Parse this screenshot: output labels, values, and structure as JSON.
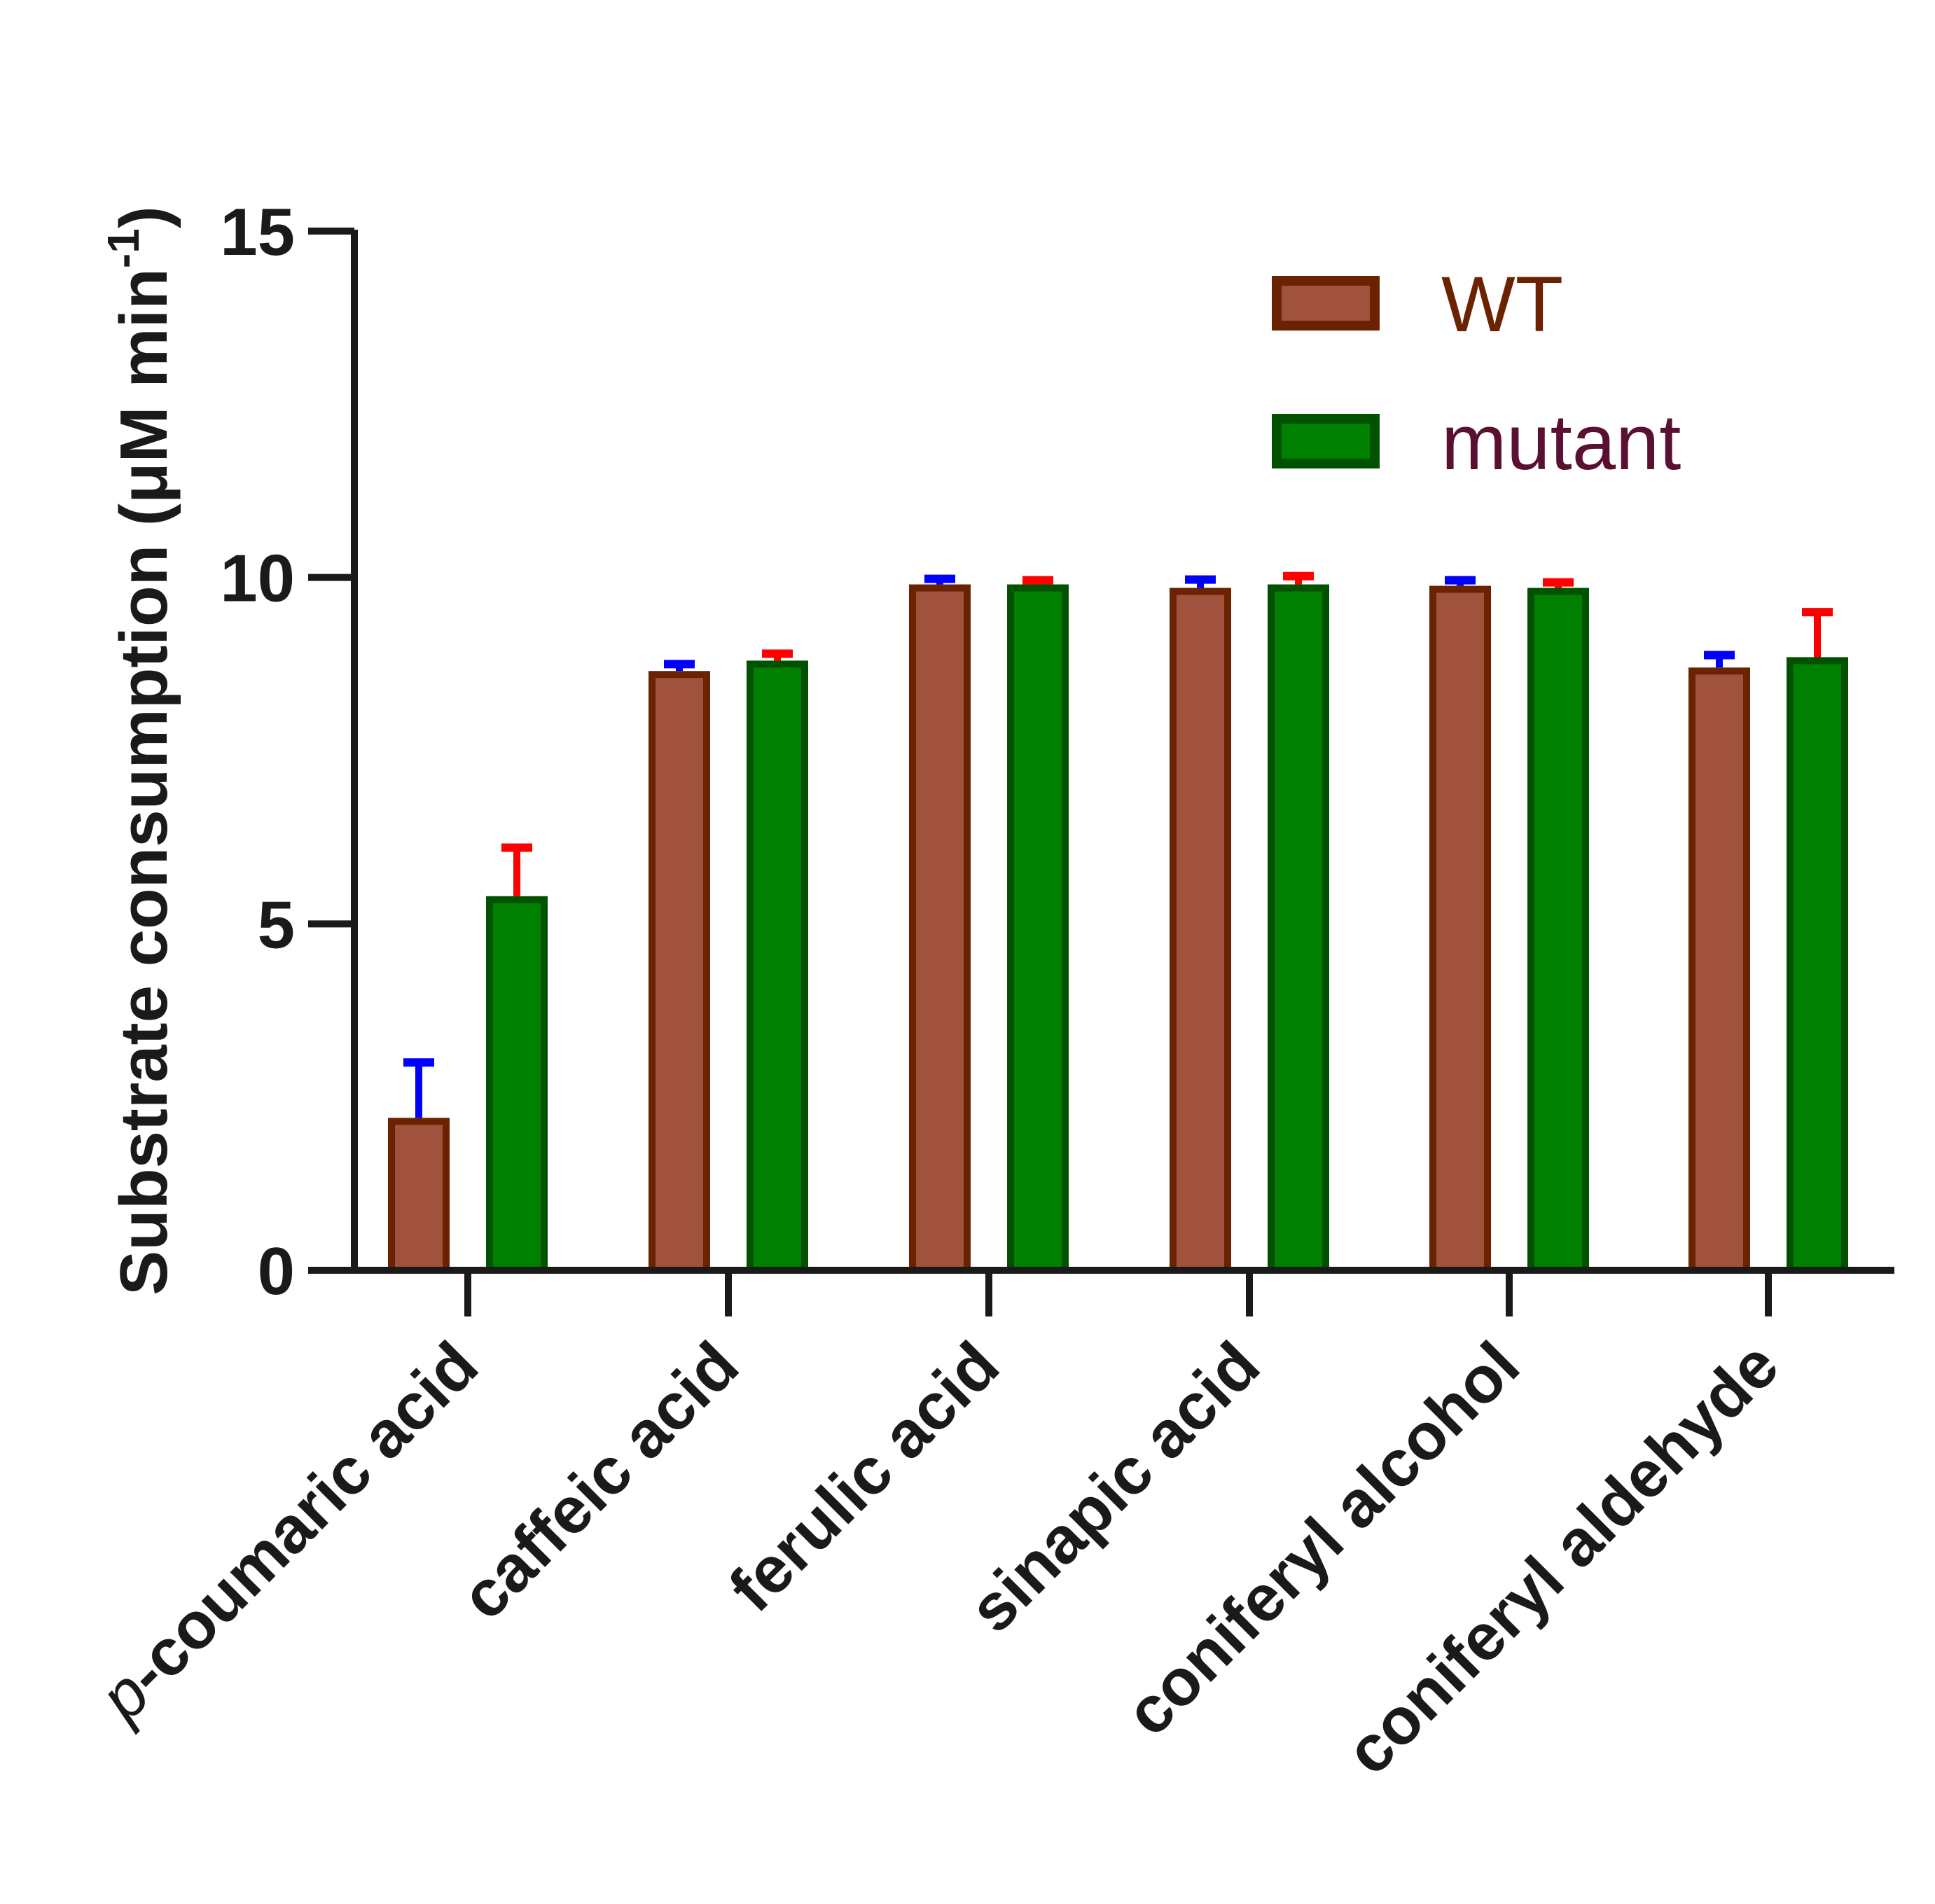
{
  "chart_data": {
    "type": "bar",
    "title": "",
    "xlabel": "",
    "ylabel": "Substrate consumption (μM min",
    "ylabel_superscript": "-1",
    "ylabel_close": ")",
    "ylim": [
      0,
      15
    ],
    "yticks": [
      "0",
      "5",
      "10",
      "15"
    ],
    "categories": [
      {
        "prefix": "p",
        "rest": "-coumaric acid"
      },
      {
        "prefix": "",
        "rest": "caffeic acid"
      },
      {
        "prefix": "",
        "rest": "ferulic acid"
      },
      {
        "prefix": "",
        "rest": "sinapic acid"
      },
      {
        "prefix": "",
        "rest": "coniferyl alcohol"
      },
      {
        "prefix": "",
        "rest": "coniferyl aldehyde"
      }
    ],
    "series": [
      {
        "name": "WT",
        "values": [
          2.2,
          8.65,
          9.9,
          9.85,
          9.88,
          8.7
        ],
        "errors": [
          0.8,
          0.1,
          0.08,
          0.12,
          0.08,
          0.18
        ],
        "fill": "#a0523c",
        "stroke": "#6b2200",
        "error_color": "#0000ff",
        "legend_text_color": "#6b2200"
      },
      {
        "name": "mutant",
        "values": [
          5.4,
          8.8,
          9.9,
          9.9,
          9.85,
          8.85
        ],
        "errors": [
          0.7,
          0.1,
          0.06,
          0.12,
          0.08,
          0.65
        ],
        "fill": "#008000",
        "stroke": "#005200",
        "error_color": "#ff0000",
        "legend_text_color": "#5a1030"
      }
    ],
    "legend_position": "top-right",
    "grid": false
  }
}
